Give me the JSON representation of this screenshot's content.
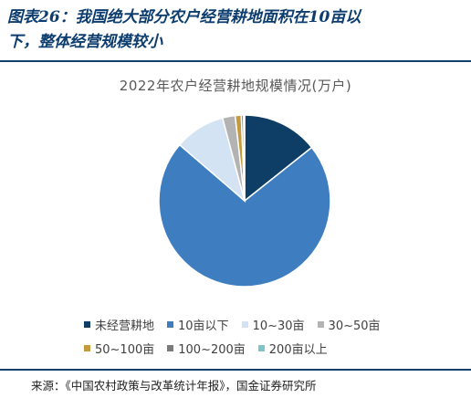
{
  "figure": {
    "title_line1": "图表26：我国绝大部分农户经营耕地面积在10亩以",
    "title_line2": "下，整体经营规模较小"
  },
  "chart_data": {
    "type": "pie",
    "title": "2022年农户经营耕地规模情况(万户)",
    "categories": [
      "未经营耕地",
      "10亩以下",
      "10~30亩",
      "30~50亩",
      "50~100亩",
      "100~200亩",
      "200亩以上"
    ],
    "values": [
      3000,
      15100,
      2000,
      500,
      240,
      90,
      40
    ],
    "colors": [
      "#0e3e66",
      "#3d7dc0",
      "#d4e3f3",
      "#b3b3b3",
      "#c59a3c",
      "#7a7a7a",
      "#7fc4c6"
    ],
    "legend_position": "bottom"
  },
  "source": "来源：《中国农村政策与改革统计年报》，国金证券研究所"
}
